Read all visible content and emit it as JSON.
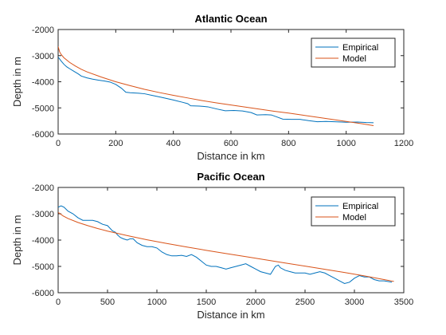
{
  "chart_data": [
    {
      "type": "line",
      "title": "Atlantic Ocean",
      "xlabel": "Distance in km",
      "ylabel": "Depth in m",
      "xlim": [
        0,
        1200
      ],
      "ylim": [
        -6000,
        -2000
      ],
      "xticks": [
        0,
        200,
        400,
        600,
        800,
        1000,
        1200
      ],
      "yticks": [
        -6000,
        -5000,
        -4000,
        -3000,
        -2000
      ],
      "grid": false,
      "legend": "top-right",
      "series": [
        {
          "name": "Empirical",
          "color": "#0072BD",
          "points": [
            [
              0,
              -3050
            ],
            [
              10,
              -3200
            ],
            [
              20,
              -3330
            ],
            [
              30,
              -3430
            ],
            [
              40,
              -3500
            ],
            [
              55,
              -3600
            ],
            [
              70,
              -3700
            ],
            [
              80,
              -3780
            ],
            [
              100,
              -3850
            ],
            [
              120,
              -3900
            ],
            [
              140,
              -3940
            ],
            [
              160,
              -3970
            ],
            [
              180,
              -4010
            ],
            [
              200,
              -4100
            ],
            [
              220,
              -4250
            ],
            [
              235,
              -4400
            ],
            [
              250,
              -4420
            ],
            [
              280,
              -4440
            ],
            [
              300,
              -4460
            ],
            [
              330,
              -4530
            ],
            [
              360,
              -4600
            ],
            [
              400,
              -4700
            ],
            [
              430,
              -4780
            ],
            [
              450,
              -4840
            ],
            [
              460,
              -4920
            ],
            [
              490,
              -4930
            ],
            [
              520,
              -4960
            ],
            [
              550,
              -5040
            ],
            [
              580,
              -5110
            ],
            [
              610,
              -5100
            ],
            [
              640,
              -5120
            ],
            [
              670,
              -5180
            ],
            [
              690,
              -5270
            ],
            [
              720,
              -5260
            ],
            [
              740,
              -5270
            ],
            [
              760,
              -5350
            ],
            [
              780,
              -5430
            ],
            [
              810,
              -5440
            ],
            [
              840,
              -5440
            ],
            [
              870,
              -5490
            ],
            [
              900,
              -5530
            ],
            [
              930,
              -5520
            ],
            [
              960,
              -5530
            ],
            [
              1000,
              -5550
            ],
            [
              1040,
              -5540
            ],
            [
              1070,
              -5560
            ],
            [
              1095,
              -5570
            ]
          ]
        },
        {
          "name": "Model",
          "color": "#D95319",
          "points": [
            [
              0,
              -2650
            ],
            [
              5,
              -2850
            ],
            [
              10,
              -2950
            ],
            [
              20,
              -3080
            ],
            [
              40,
              -3260
            ],
            [
              60,
              -3400
            ],
            [
              80,
              -3520
            ],
            [
              100,
              -3620
            ],
            [
              150,
              -3820
            ],
            [
              200,
              -4000
            ],
            [
              250,
              -4150
            ],
            [
              300,
              -4290
            ],
            [
              350,
              -4410
            ],
            [
              400,
              -4520
            ],
            [
              450,
              -4620
            ],
            [
              500,
              -4720
            ],
            [
              550,
              -4810
            ],
            [
              600,
              -4890
            ],
            [
              650,
              -4970
            ],
            [
              700,
              -5050
            ],
            [
              750,
              -5130
            ],
            [
              800,
              -5200
            ],
            [
              850,
              -5280
            ],
            [
              900,
              -5360
            ],
            [
              950,
              -5440
            ],
            [
              1000,
              -5520
            ],
            [
              1050,
              -5600
            ],
            [
              1095,
              -5680
            ]
          ]
        }
      ]
    },
    {
      "type": "line",
      "title": "Pacific Ocean",
      "xlabel": "Distance in km",
      "ylabel": "Depth in m",
      "xlim": [
        0,
        3500
      ],
      "ylim": [
        -6000,
        -2000
      ],
      "xticks": [
        0,
        500,
        1000,
        1500,
        2000,
        2500,
        3000,
        3500
      ],
      "yticks": [
        -6000,
        -5000,
        -4000,
        -3000,
        -2000
      ],
      "grid": false,
      "legend": "top-right",
      "series": [
        {
          "name": "Empirical",
          "color": "#0072BD",
          "points": [
            [
              0,
              -2750
            ],
            [
              30,
              -2700
            ],
            [
              60,
              -2750
            ],
            [
              100,
              -2900
            ],
            [
              150,
              -3000
            ],
            [
              200,
              -3150
            ],
            [
              250,
              -3250
            ],
            [
              300,
              -3250
            ],
            [
              350,
              -3250
            ],
            [
              400,
              -3300
            ],
            [
              450,
              -3400
            ],
            [
              500,
              -3450
            ],
            [
              550,
              -3650
            ],
            [
              580,
              -3700
            ],
            [
              600,
              -3800
            ],
            [
              630,
              -3900
            ],
            [
              660,
              -3950
            ],
            [
              700,
              -4000
            ],
            [
              730,
              -3950
            ],
            [
              760,
              -3950
            ],
            [
              800,
              -4100
            ],
            [
              850,
              -4200
            ],
            [
              900,
              -4250
            ],
            [
              950,
              -4250
            ],
            [
              1000,
              -4300
            ],
            [
              1050,
              -4450
            ],
            [
              1100,
              -4550
            ],
            [
              1150,
              -4600
            ],
            [
              1200,
              -4600
            ],
            [
              1250,
              -4580
            ],
            [
              1300,
              -4620
            ],
            [
              1350,
              -4550
            ],
            [
              1400,
              -4650
            ],
            [
              1450,
              -4800
            ],
            [
              1500,
              -4950
            ],
            [
              1550,
              -5000
            ],
            [
              1600,
              -5000
            ],
            [
              1650,
              -5050
            ],
            [
              1700,
              -5100
            ],
            [
              1750,
              -5050
            ],
            [
              1800,
              -5000
            ],
            [
              1850,
              -4950
            ],
            [
              1900,
              -4900
            ],
            [
              1950,
              -5000
            ],
            [
              2000,
              -5100
            ],
            [
              2050,
              -5200
            ],
            [
              2100,
              -5250
            ],
            [
              2150,
              -5300
            ],
            [
              2200,
              -5000
            ],
            [
              2230,
              -4950
            ],
            [
              2250,
              -5050
            ],
            [
              2300,
              -5150
            ],
            [
              2350,
              -5200
            ],
            [
              2400,
              -5250
            ],
            [
              2450,
              -5250
            ],
            [
              2500,
              -5250
            ],
            [
              2550,
              -5300
            ],
            [
              2600,
              -5250
            ],
            [
              2650,
              -5200
            ],
            [
              2700,
              -5250
            ],
            [
              2750,
              -5350
            ],
            [
              2800,
              -5450
            ],
            [
              2850,
              -5550
            ],
            [
              2900,
              -5650
            ],
            [
              2950,
              -5600
            ],
            [
              3000,
              -5450
            ],
            [
              3050,
              -5350
            ],
            [
              3100,
              -5400
            ],
            [
              3150,
              -5400
            ],
            [
              3200,
              -5500
            ],
            [
              3250,
              -5550
            ],
            [
              3300,
              -5550
            ],
            [
              3350,
              -5580
            ],
            [
              3380,
              -5600
            ]
          ]
        },
        {
          "name": "Model",
          "color": "#D95319",
          "points": [
            [
              0,
              -2950
            ],
            [
              20,
              -3000
            ],
            [
              50,
              -3080
            ],
            [
              100,
              -3180
            ],
            [
              200,
              -3330
            ],
            [
              300,
              -3450
            ],
            [
              400,
              -3560
            ],
            [
              500,
              -3660
            ],
            [
              700,
              -3830
            ],
            [
              900,
              -3990
            ],
            [
              1100,
              -4130
            ],
            [
              1300,
              -4260
            ],
            [
              1500,
              -4390
            ],
            [
              1700,
              -4510
            ],
            [
              1900,
              -4630
            ],
            [
              2100,
              -4750
            ],
            [
              2300,
              -4870
            ],
            [
              2500,
              -4990
            ],
            [
              2700,
              -5110
            ],
            [
              2900,
              -5230
            ],
            [
              3100,
              -5360
            ],
            [
              3300,
              -5500
            ],
            [
              3400,
              -5570
            ]
          ]
        }
      ]
    }
  ]
}
